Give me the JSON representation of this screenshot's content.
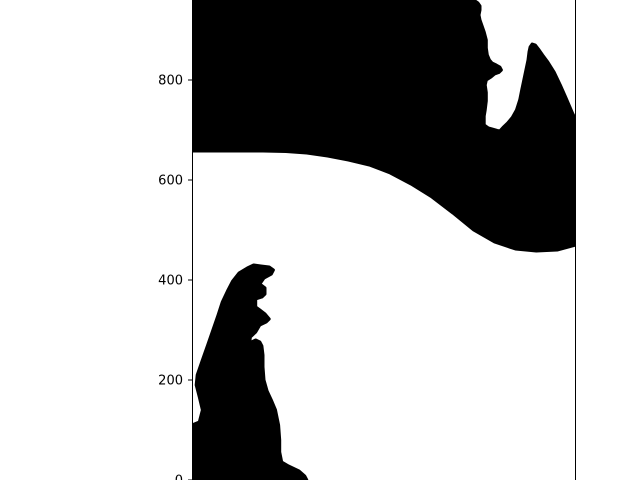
{
  "chart_data": {
    "type": "scatter",
    "title": "",
    "xlabel": "",
    "ylabel": "",
    "ylim": [
      0,
      960
    ],
    "y_ticks": [
      {
        "value": 0,
        "label": "0"
      },
      {
        "value": 200,
        "label": "200"
      },
      {
        "value": 400,
        "label": "400"
      },
      {
        "value": 600,
        "label": "600"
      },
      {
        "value": 800,
        "label": "800"
      }
    ],
    "x_ticks_visible": false,
    "grid": false,
    "legend": "none",
    "series": [
      {
        "marker": "filled circle (dense point cloud)",
        "color": "#000000",
        "regions": [
          {
            "name": "upper-band",
            "boundary": [
              [
                0,
                960
              ],
              [
                540,
                960
              ],
              [
                548,
                954
              ],
              [
                552,
                948
              ],
              [
                552,
                940
              ],
              [
                550,
                930
              ],
              [
                552,
                920
              ],
              [
                556,
                908
              ],
              [
                560,
                896
              ],
              [
                564,
                880
              ],
              [
                564,
                864
              ],
              [
                566,
                850
              ],
              [
                570,
                840
              ],
              [
                575,
                834
              ],
              [
                583,
                830
              ],
              [
                590,
                826
              ],
              [
                593,
                820
              ],
              [
                588,
                815
              ],
              [
                580,
                812
              ],
              [
                573,
                806
              ],
              [
                564,
                800
              ],
              [
                562,
                790
              ],
              [
                564,
                775
              ],
              [
                564,
                758
              ],
              [
                562,
                740
              ],
              [
                560,
                728
              ],
              [
                560,
                710
              ],
              [
                568,
                704
              ],
              [
                575,
                702
              ],
              [
                585,
                699
              ],
              [
                590,
                698
              ],
              [
                596,
                705
              ],
              [
                605,
                714
              ],
              [
                614,
                725
              ],
              [
                622,
                740
              ],
              [
                628,
                760
              ],
              [
                632,
                780
              ],
              [
                636,
                800
              ],
              [
                640,
                820
              ],
              [
                644,
                840
              ],
              [
                646,
                856
              ],
              [
                648,
                866
              ],
              [
                652,
                872
              ],
              [
                658,
                870
              ],
              [
                664,
                862
              ],
              [
                672,
                850
              ],
              [
                682,
                836
              ],
              [
                694,
                816
              ],
              [
                706,
                790
              ],
              [
                716,
                766
              ],
              [
                730,
                732
              ],
              [
                736,
                720
              ],
              [
                736,
                470
              ],
              [
                700,
                460
              ],
              [
                660,
                458
              ],
              [
                620,
                462
              ],
              [
                580,
                476
              ],
              [
                540,
                500
              ],
              [
                500,
                534
              ],
              [
                460,
                566
              ],
              [
                420,
                592
              ],
              [
                380,
                614
              ],
              [
                340,
                630
              ],
              [
                300,
                640
              ],
              [
                260,
                648
              ],
              [
                220,
                654
              ],
              [
                180,
                657
              ],
              [
                136,
                658
              ],
              [
                0,
                658
              ]
            ]
          },
          {
            "name": "lower-left-hand",
            "boundary": [
              [
                0,
                0
              ],
              [
                220,
                0
              ],
              [
                216,
                8
              ],
              [
                205,
                18
              ],
              [
                185,
                28
              ],
              [
                172,
                36
              ],
              [
                168,
                56
              ],
              [
                168,
                80
              ],
              [
                166,
                110
              ],
              [
                160,
                140
              ],
              [
                152,
                160
              ],
              [
                144,
                178
              ],
              [
                138,
                200
              ],
              [
                136,
                226
              ],
              [
                136,
                250
              ],
              [
                134,
                268
              ],
              [
                130,
                276
              ],
              [
                122,
                280
              ],
              [
                114,
                276
              ],
              [
                110,
                270
              ],
              [
                112,
                286
              ],
              [
                122,
                296
              ],
              [
                130,
                310
              ],
              [
                142,
                316
              ],
              [
                148,
                322
              ],
              [
                140,
                332
              ],
              [
                130,
                340
              ],
              [
                122,
                346
              ],
              [
                122,
                362
              ],
              [
                134,
                366
              ],
              [
                140,
                372
              ],
              [
                140,
                384
              ],
              [
                130,
                392
              ],
              [
                138,
                404
              ],
              [
                152,
                412
              ],
              [
                156,
                420
              ],
              [
                148,
                426
              ],
              [
                132,
                428
              ],
              [
                118,
                430
              ],
              [
                106,
                424
              ],
              [
                90,
                414
              ],
              [
                78,
                398
              ],
              [
                68,
                378
              ],
              [
                58,
                356
              ],
              [
                50,
                330
              ],
              [
                40,
                300
              ],
              [
                30,
                270
              ],
              [
                20,
                240
              ],
              [
                10,
                210
              ],
              [
                8,
                190
              ],
              [
                14,
                166
              ],
              [
                20,
                140
              ],
              [
                14,
                116
              ],
              [
                0,
                110
              ]
            ]
          }
        ]
      }
    ]
  }
}
